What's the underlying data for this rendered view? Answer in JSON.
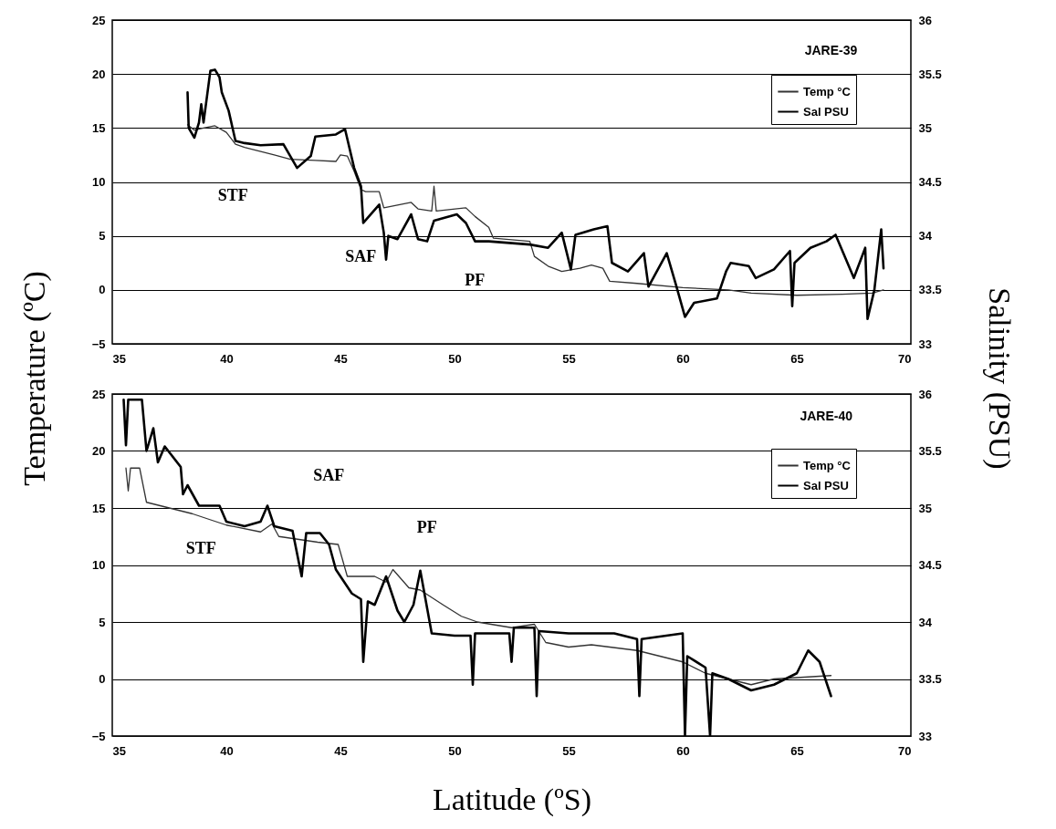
{
  "chart_data": [
    {
      "type": "line",
      "ylabel": "Temperature (ºC)",
      "y2label": "Salinity (PSU)",
      "xlim": [
        35,
        70
      ],
      "xticks": [
        35,
        40,
        45,
        50,
        55,
        60,
        65,
        70
      ],
      "ylim": [
        -5,
        25
      ],
      "yticks": [
        -5,
        0,
        5,
        10,
        15,
        20,
        25
      ],
      "y2lim": [
        33,
        36
      ],
      "y2ticks": [
        33,
        33.5,
        34,
        34.5,
        35,
        35.5,
        36
      ],
      "grid": "y",
      "legend": "top right",
      "annotations": [
        "STF",
        "SAF",
        "PF",
        "JARE-39"
      ],
      "series": [
        {
          "name": "Temp °C",
          "color": "#333333",
          "x": [
            38.3,
            38.6,
            39.0,
            39.5,
            40.0,
            40.4,
            40.8,
            42.1,
            42.8,
            43.9,
            44.8,
            45.0,
            45.3,
            45.6,
            45.9,
            46.1,
            46.7,
            46.9,
            48.1,
            48.4,
            49.0,
            49.1,
            49.2,
            50.5,
            50.9,
            51.5,
            51.7,
            53.3,
            53.5,
            54.1,
            54.7,
            55.5,
            56.0,
            56.5,
            56.8,
            58.0,
            60.0,
            62.0,
            63.0,
            65.0,
            67.0,
            68.3,
            68.8
          ],
          "values": [
            15.3,
            14.8,
            15.0,
            15.2,
            14.6,
            13.5,
            13.2,
            12.5,
            12.1,
            12.0,
            11.9,
            12.5,
            12.4,
            11.0,
            9.3,
            9.1,
            9.1,
            7.6,
            8.1,
            7.5,
            7.3,
            9.6,
            7.3,
            7.6,
            6.8,
            5.8,
            4.8,
            4.5,
            3.1,
            2.2,
            1.7,
            2.0,
            2.3,
            2.0,
            0.8,
            0.6,
            0.2,
            0.0,
            -0.3,
            -0.5,
            -0.4,
            -0.3,
            0.0
          ]
        },
        {
          "name": "Sal PSU",
          "color": "#000000",
          "axis": "y2",
          "x": [
            38.3,
            38.35,
            38.6,
            38.8,
            38.9,
            39.0,
            39.3,
            39.5,
            39.7,
            39.8,
            40.1,
            40.4,
            40.8,
            41.5,
            42.5,
            43.1,
            43.7,
            43.9,
            44.8,
            45.2,
            45.6,
            45.9,
            46.0,
            46.7,
            46.9,
            47.0,
            47.1,
            47.5,
            48.1,
            48.4,
            48.8,
            49.1,
            50.1,
            50.5,
            50.9,
            51.5,
            53.3,
            54.1,
            54.7,
            55.1,
            55.3,
            56.1,
            56.7,
            56.9,
            57.6,
            58.3,
            58.5,
            59.3,
            59.7,
            60.1,
            60.5,
            61.5,
            61.9,
            62.1,
            62.9,
            63.2,
            64.0,
            64.7,
            64.8,
            64.9,
            65.6,
            66.3,
            66.7,
            67.5,
            68.0,
            68.1,
            68.4,
            68.7,
            68.8
          ],
          "values": [
            35.33,
            35.0,
            34.91,
            35.05,
            35.22,
            35.05,
            35.53,
            35.54,
            35.47,
            35.33,
            35.16,
            34.88,
            34.86,
            34.84,
            34.85,
            34.63,
            34.74,
            34.92,
            34.94,
            34.99,
            34.63,
            34.46,
            34.12,
            34.29,
            34.03,
            33.78,
            34.0,
            33.97,
            34.2,
            33.97,
            33.95,
            34.14,
            34.2,
            34.12,
            33.95,
            33.95,
            33.92,
            33.89,
            34.03,
            33.69,
            34.01,
            34.06,
            34.09,
            33.75,
            33.67,
            33.84,
            33.53,
            33.84,
            33.55,
            33.25,
            33.38,
            33.42,
            33.67,
            33.75,
            33.72,
            33.61,
            33.69,
            33.86,
            33.35,
            33.75,
            33.89,
            33.95,
            34.01,
            33.61,
            33.89,
            33.23,
            33.5,
            34.06,
            33.7
          ]
        }
      ]
    },
    {
      "type": "line",
      "xlabel": "Latitude (ºS)",
      "xlim": [
        35,
        70
      ],
      "xticks": [
        35,
        40,
        45,
        50,
        55,
        60,
        65,
        70
      ],
      "ylim": [
        -5,
        25
      ],
      "yticks": [
        -5,
        0,
        5,
        10,
        15,
        20,
        25
      ],
      "y2lim": [
        33,
        36
      ],
      "y2ticks": [
        33,
        33.5,
        34,
        34.5,
        35,
        35.5,
        36
      ],
      "grid": "y",
      "legend": "top right",
      "annotations": [
        "STF",
        "SAF",
        "PF",
        "JARE-40"
      ],
      "series": [
        {
          "name": "Temp °C",
          "color": "#333333",
          "x": [
            35.6,
            35.7,
            35.8,
            36.2,
            36.5,
            37.5,
            38.5,
            40.0,
            41.5,
            42.0,
            42.3,
            44.0,
            44.9,
            45.3,
            46.5,
            47.0,
            47.3,
            48.0,
            48.5,
            49.5,
            50.3,
            51.0,
            52.5,
            53.5,
            54.0,
            55.0,
            56.0,
            58.0,
            59.0,
            60.0,
            61.0,
            62.0,
            63.0,
            64.0,
            66.5
          ],
          "values": [
            18.5,
            16.5,
            18.5,
            18.5,
            15.5,
            15.0,
            14.5,
            13.5,
            12.9,
            13.6,
            12.5,
            12.0,
            11.8,
            9.0,
            9.0,
            8.5,
            9.6,
            8.0,
            7.8,
            6.5,
            5.5,
            5.0,
            4.5,
            4.8,
            3.2,
            2.8,
            3.0,
            2.5,
            2.0,
            1.5,
            0.5,
            0.0,
            -0.5,
            0.0,
            0.3
          ]
        },
        {
          "name": "Sal PSU",
          "color": "#000000",
          "axis": "y2",
          "x": [
            35.5,
            35.6,
            35.7,
            36.3,
            36.5,
            36.8,
            37.0,
            37.3,
            38.0,
            38.1,
            38.3,
            38.8,
            39.7,
            40.0,
            40.8,
            41.5,
            41.8,
            42.1,
            42.9,
            43.3,
            43.5,
            44.1,
            44.5,
            44.8,
            45.5,
            45.9,
            46.0,
            46.2,
            46.5,
            47.0,
            47.5,
            47.8,
            48.2,
            48.5,
            49.0,
            50.0,
            50.7,
            50.8,
            50.9,
            52.4,
            52.5,
            52.6,
            53.5,
            53.6,
            53.7,
            55.0,
            57.0,
            58.0,
            58.1,
            58.2,
            60.0,
            60.1,
            60.2,
            61.0,
            61.2,
            61.3,
            62.0,
            63.0,
            64.0,
            65.0,
            65.5,
            66.0,
            66.5
          ],
          "values": [
            35.95,
            35.55,
            35.95,
            35.95,
            35.5,
            35.7,
            35.4,
            35.54,
            35.36,
            35.12,
            35.2,
            35.02,
            35.02,
            34.88,
            34.84,
            34.88,
            35.02,
            34.84,
            34.8,
            34.4,
            34.78,
            34.78,
            34.68,
            34.46,
            34.25,
            34.2,
            33.65,
            34.18,
            34.15,
            34.4,
            34.1,
            34.0,
            34.15,
            34.45,
            33.9,
            33.88,
            33.88,
            33.45,
            33.9,
            33.9,
            33.65,
            33.95,
            33.95,
            33.35,
            33.92,
            33.9,
            33.9,
            33.85,
            33.35,
            33.85,
            33.9,
            33.0,
            33.7,
            33.6,
            33.0,
            33.55,
            33.5,
            33.4,
            33.45,
            33.55,
            33.75,
            33.65,
            33.35
          ]
        }
      ]
    }
  ]
}
